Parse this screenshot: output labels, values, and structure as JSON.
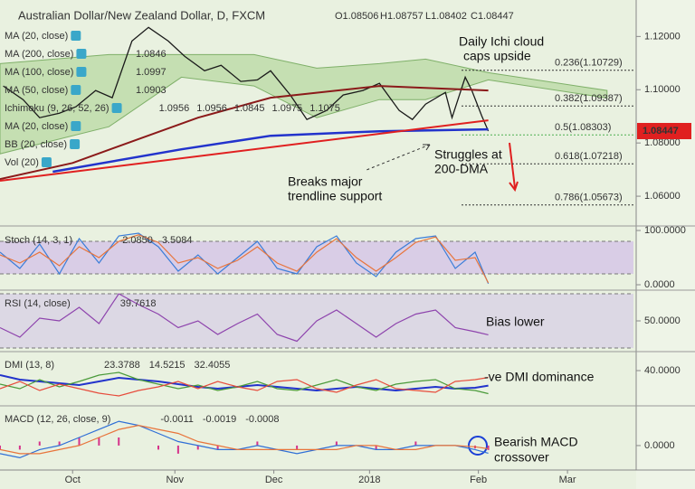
{
  "chart_data": [
    {
      "type": "line",
      "title": "Australian Dollar/New Zealand Dollar, D, FXCM",
      "ohlc": [
        "O1.08506",
        "H1.08757",
        "L1.08402",
        "C1.08447"
      ],
      "legend": [
        {
          "label": "MA (20, close)",
          "values": []
        },
        {
          "label": "MA (200, close)",
          "values": [
            1.0846
          ],
          "colors": [
            "#2233cc"
          ]
        },
        {
          "label": "MA (100, close)",
          "values": [
            1.0997
          ],
          "colors": [
            "#c0392b"
          ]
        },
        {
          "label": "MA (50, close)",
          "values": [
            1.0903
          ],
          "colors": [
            "#8b1a1a"
          ]
        },
        {
          "label": "Ichimoku (9, 26, 52, 26)",
          "values": [
            1.0956,
            1.0956,
            1.0845,
            1.0975,
            1.1075
          ],
          "colors": [
            "#2233cc",
            "#8b1a1a",
            "#2e7d32",
            "#2e7d32",
            "#c0392b"
          ]
        },
        {
          "label": "MA (20, close)",
          "values": []
        },
        {
          "label": "BB (20, close)",
          "values": []
        },
        {
          "label": "Vol (20)",
          "values": []
        }
      ],
      "xlim": [
        0,
        192
      ],
      "xticks": [
        {
          "value": 22,
          "label": "Oct"
        },
        {
          "value": 53,
          "label": "Nov"
        },
        {
          "value": 83,
          "label": "Dec"
        },
        {
          "value": 112,
          "label": "2018"
        },
        {
          "value": 145,
          "label": "Feb"
        },
        {
          "value": 172,
          "label": "Mar"
        }
      ],
      "ylim": [
        1.0495,
        1.132
      ],
      "yticks": [
        {
          "value": 1.12,
          "label": "1.12000"
        },
        {
          "value": 1.1,
          "label": "1.10000"
        },
        {
          "value": 1.08,
          "label": "1.08000"
        },
        {
          "value": 1.06,
          "label": "1.06000"
        }
      ],
      "cloud": {
        "color": "#a8d08d",
        "x": [
          0,
          33,
          55,
          77,
          96,
          115,
          129,
          148,
          184
        ],
        "upper": [
          1.1098,
          1.1132,
          1.1132,
          1.1132,
          1.1081,
          1.1098,
          1.1115,
          1.1064,
          1.0997
        ],
        "lower": [
          1.0759,
          1.0861,
          1.1047,
          1.1014,
          1.0895,
          1.0963,
          1.0963,
          1.1037,
          1.0969
        ]
      },
      "series": [
        {
          "color": "#1a1a1a",
          "width": 1.3,
          "x": [
            1,
            7,
            12,
            18,
            23,
            29,
            34,
            40,
            45,
            51,
            56,
            62,
            67,
            73,
            78,
            82,
            88,
            93,
            99,
            104,
            110,
            115,
            121,
            125,
            129,
            135,
            137,
            141,
            143,
            146,
            148
          ],
          "values": [
            1.1014,
            1.0963,
            1.0895,
            1.0912,
            1.0936,
            1.0997,
            1.097,
            1.1183,
            1.1234,
            1.1183,
            1.1125,
            1.1071,
            1.1092,
            1.1031,
            1.1037,
            1.1071,
            1.098,
            1.0888,
            1.0922,
            1.098,
            1.0997,
            1.1024,
            1.0922,
            1.0888,
            1.0946,
            1.099,
            1.0895,
            1.1047,
            1.0997,
            1.0902,
            1.08447
          ]
        },
        {
          "color": "#8b1a1a",
          "width": 2,
          "x": [
            0,
            22,
            41,
            60,
            82,
            115,
            148
          ],
          "values": [
            1.0664,
            1.0725,
            1.081,
            1.0895,
            1.097,
            1.1014,
            1.0997
          ]
        },
        {
          "color": "#2233cc",
          "width": 2.5,
          "x": [
            16,
            55,
            82,
            115,
            148
          ],
          "values": [
            1.0692,
            1.0776,
            1.0827,
            1.0844,
            1.0851
          ]
        },
        {
          "color": "#e02020",
          "width": 2,
          "x": [
            0,
            148
          ],
          "values": [
            1.0658,
            1.0885
          ]
        }
      ],
      "fib_levels": [
        {
          "value": 1.10729,
          "label": "0.236(1.10729)",
          "color": "#333333"
        },
        {
          "value": 1.09387,
          "label": "0.382(1.09387)",
          "color": "#333333"
        },
        {
          "value": 1.08303,
          "label": "0.5(1.08303)",
          "color": "#4caf50"
        },
        {
          "value": 1.07218,
          "label": "0.618(1.07218)",
          "color": "#333333"
        },
        {
          "value": 1.05673,
          "label": "0.786(1.05673)",
          "color": "#333333"
        }
      ],
      "annotations": [
        [
          "Daily Ichi cloud",
          "caps upside"
        ],
        [
          "Struggles at",
          "200-DMA"
        ],
        [
          "Breaks major",
          "trendline support"
        ]
      ]
    },
    {
      "type": "line",
      "label": "Stoch (14, 3, 1)",
      "header": [
        {
          "value": 2.085,
          "label": "2.0850"
        },
        {
          "value": 3.5084,
          "label": "3.5084"
        }
      ],
      "ylim": [
        -8.3,
        105
      ],
      "yticks": [
        {
          "value": 100,
          "label": "100.0000"
        },
        {
          "value": 0,
          "label": "0.0000"
        }
      ],
      "band": [
        20,
        80
      ],
      "x": [
        0,
        6,
        12,
        18,
        24,
        30,
        36,
        42,
        48,
        54,
        60,
        66,
        72,
        78,
        84,
        90,
        96,
        102,
        108,
        114,
        120,
        126,
        132,
        138,
        144,
        148
      ],
      "series": [
        {
          "color": "#3b7dd8",
          "values": [
            60,
            30,
            75,
            20,
            85,
            40,
            90,
            95,
            70,
            25,
            55,
            20,
            50,
            80,
            30,
            20,
            70,
            90,
            40,
            15,
            60,
            85,
            90,
            30,
            60,
            2.085
          ]
        },
        {
          "color": "#e8743b",
          "values": [
            55,
            40,
            60,
            35,
            70,
            50,
            80,
            92,
            78,
            40,
            50,
            30,
            45,
            70,
            40,
            25,
            60,
            85,
            50,
            25,
            50,
            78,
            88,
            45,
            50,
            3.5084
          ]
        }
      ],
      "annotations": []
    },
    {
      "type": "line",
      "label": "RSI (14, close)",
      "header": [
        {
          "value": 39.7618,
          "label": "39.7618"
        }
      ],
      "ylim": [
        28,
        72
      ],
      "yticks": [
        {
          "value": 50,
          "label": "50.0000"
        }
      ],
      "band": [
        30,
        70
      ],
      "x": [
        0,
        6,
        12,
        18,
        24,
        30,
        36,
        42,
        48,
        54,
        60,
        66,
        72,
        78,
        84,
        90,
        96,
        102,
        108,
        114,
        120,
        126,
        132,
        138,
        144,
        148
      ],
      "series": [
        {
          "color": "#8e44ad",
          "values": [
            45,
            38,
            52,
            50,
            60,
            48,
            70,
            62,
            55,
            45,
            50,
            40,
            48,
            55,
            40,
            35,
            50,
            58,
            48,
            38,
            48,
            55,
            58,
            45,
            42,
            39.7618
          ]
        }
      ],
      "annotations": [
        [
          "Bias lower"
        ]
      ]
    },
    {
      "type": "line",
      "label": "DMI (13, 8)",
      "header": [
        {
          "value": 23.3788,
          "label": "23.3788"
        },
        {
          "value": 14.5215,
          "label": "14.5215"
        },
        {
          "value": 32.4055,
          "label": "32.4055"
        }
      ],
      "ylim": [
        2,
        60
      ],
      "yticks": [
        {
          "value": 40,
          "label": "40.0000"
        }
      ],
      "x": [
        0,
        6,
        12,
        18,
        24,
        30,
        36,
        42,
        48,
        54,
        60,
        66,
        72,
        78,
        84,
        90,
        96,
        102,
        108,
        114,
        120,
        126,
        132,
        138,
        144,
        148
      ],
      "series": [
        {
          "color": "#2233cc",
          "width": 2,
          "values": [
            35,
            30,
            28,
            26,
            24,
            28,
            32,
            30,
            28,
            25,
            22,
            20,
            22,
            24,
            22,
            20,
            18,
            20,
            22,
            20,
            18,
            20,
            22,
            20,
            21,
            23.3788
          ]
        },
        {
          "color": "#4a9a3a",
          "values": [
            25,
            20,
            30,
            22,
            28,
            35,
            38,
            30,
            25,
            20,
            24,
            18,
            22,
            28,
            20,
            18,
            24,
            30,
            22,
            18,
            25,
            28,
            30,
            20,
            18,
            14.5215
          ]
        },
        {
          "color": "#e74c3c",
          "values": [
            20,
            28,
            18,
            25,
            20,
            15,
            12,
            18,
            22,
            28,
            20,
            28,
            22,
            18,
            28,
            30,
            20,
            16,
            24,
            30,
            20,
            18,
            16,
            28,
            30,
            32.4055
          ]
        }
      ],
      "annotations": [
        [
          "-ve DMI dominance"
        ]
      ]
    },
    {
      "type": "macd",
      "label": "MACD (12, 26, close, 9)",
      "header": [
        {
          "value": -0.0011,
          "label": "-0.0011"
        },
        {
          "value": -0.0019,
          "label": "-0.0019"
        },
        {
          "value": -0.0008,
          "label": "-0.0008"
        }
      ],
      "ylim": [
        -0.0056,
        0.0096
      ],
      "yticks": [
        {
          "value": 0,
          "label": "0.0000"
        }
      ],
      "x": [
        0,
        6,
        12,
        18,
        24,
        30,
        36,
        42,
        48,
        54,
        60,
        66,
        72,
        78,
        84,
        90,
        96,
        102,
        108,
        114,
        120,
        126,
        132,
        138,
        144,
        148
      ],
      "histogram": {
        "color": "#d6338a",
        "values": [
          -0.001,
          -0.001,
          0.001,
          0.001,
          0.002,
          0.002,
          0.002,
          0,
          -0.001,
          -0.002,
          -0.001,
          -0.001,
          0,
          0.001,
          0,
          -0.001,
          0,
          0.001,
          0,
          -0.001,
          0,
          0.001,
          0,
          0,
          -0.0007,
          -0.0011
        ]
      },
      "series": [
        {
          "color": "#2f6fd6",
          "values": [
            -0.002,
            -0.003,
            -0.001,
            0,
            0.002,
            0.004,
            0.006,
            0.005,
            0.003,
            0.001,
            0,
            -0.001,
            -0.001,
            0,
            -0.001,
            -0.002,
            -0.001,
            0,
            0,
            -0.001,
            -0.001,
            0,
            0,
            0,
            -0.001,
            -0.0019
          ]
        },
        {
          "color": "#e8743b",
          "values": [
            -0.001,
            -0.002,
            -0.002,
            -0.001,
            0,
            0.002,
            0.004,
            0.005,
            0.004,
            0.003,
            0.001,
            0,
            -0.001,
            -0.001,
            -0.001,
            -0.001,
            -0.001,
            -0.001,
            0,
            0,
            -0.001,
            -0.001,
            0,
            0,
            -0.0003,
            -0.0008
          ]
        }
      ],
      "annotations": [
        [
          "Bearish MACD",
          "crossover"
        ]
      ]
    }
  ]
}
